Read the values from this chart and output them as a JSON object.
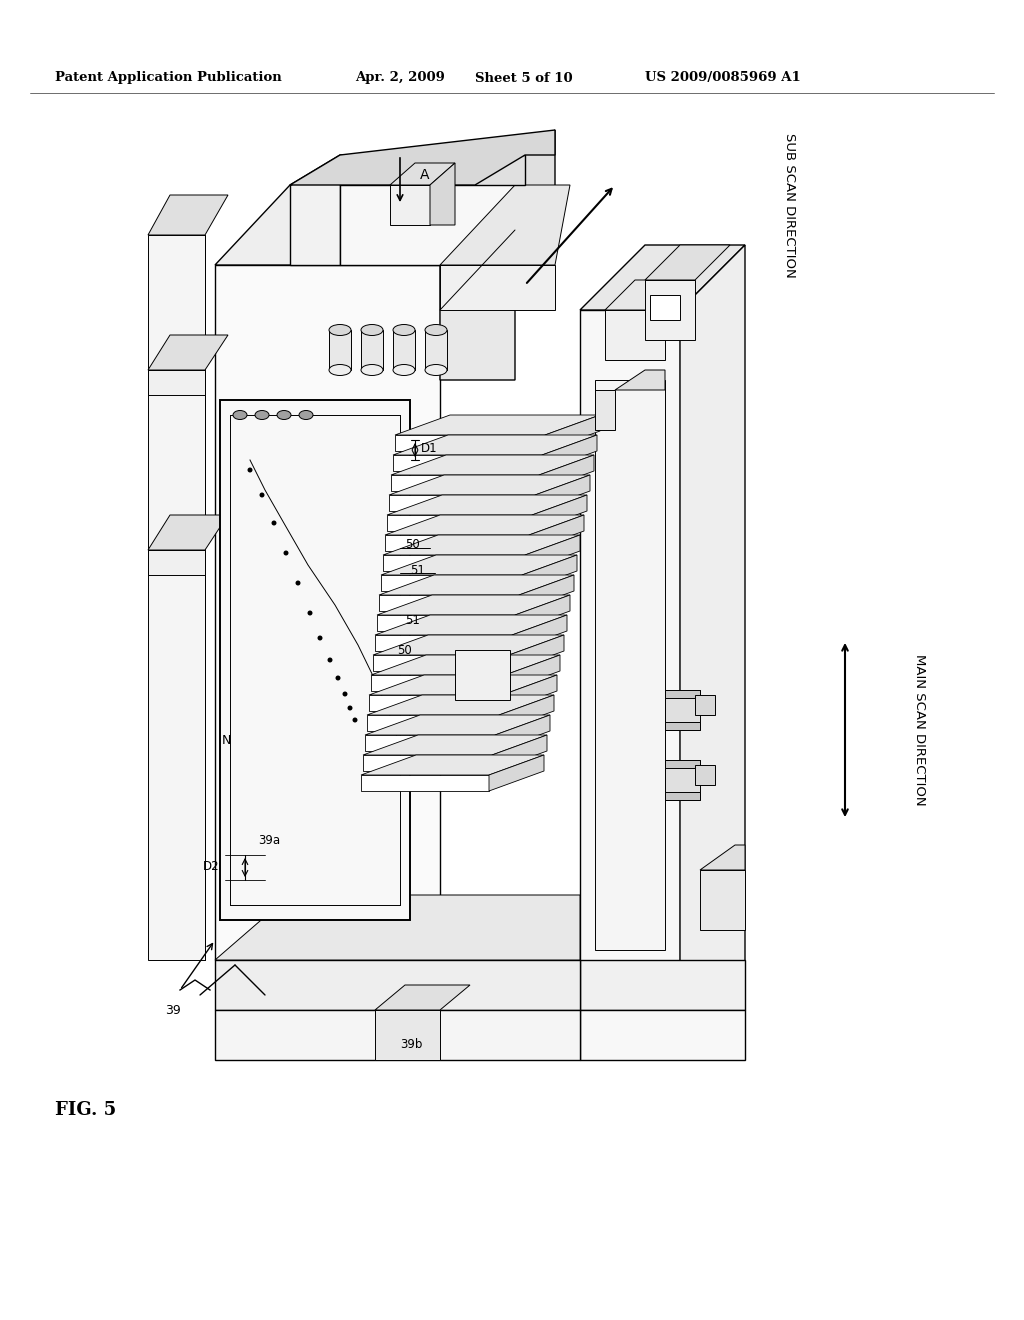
{
  "background_color": "#ffffff",
  "text_color": "#000000",
  "line_color": "#000000",
  "header_text": "Patent Application Publication",
  "header_date": "Apr. 2, 2009",
  "header_sheet": "Sheet 5 of 10",
  "header_patent": "US 2009/0085969 A1",
  "figure_label": "FIG. 5",
  "sub_scan_label": "SUB SCAN DIRECTION",
  "main_scan_label": "MAIN SCAN DIRECTION",
  "label_A": "A",
  "label_N": "N",
  "label_D1": "D1",
  "label_D2": "D2",
  "label_39": "39",
  "label_39a": "39a",
  "label_39b": "39b",
  "label_50": "50",
  "label_51": "51"
}
